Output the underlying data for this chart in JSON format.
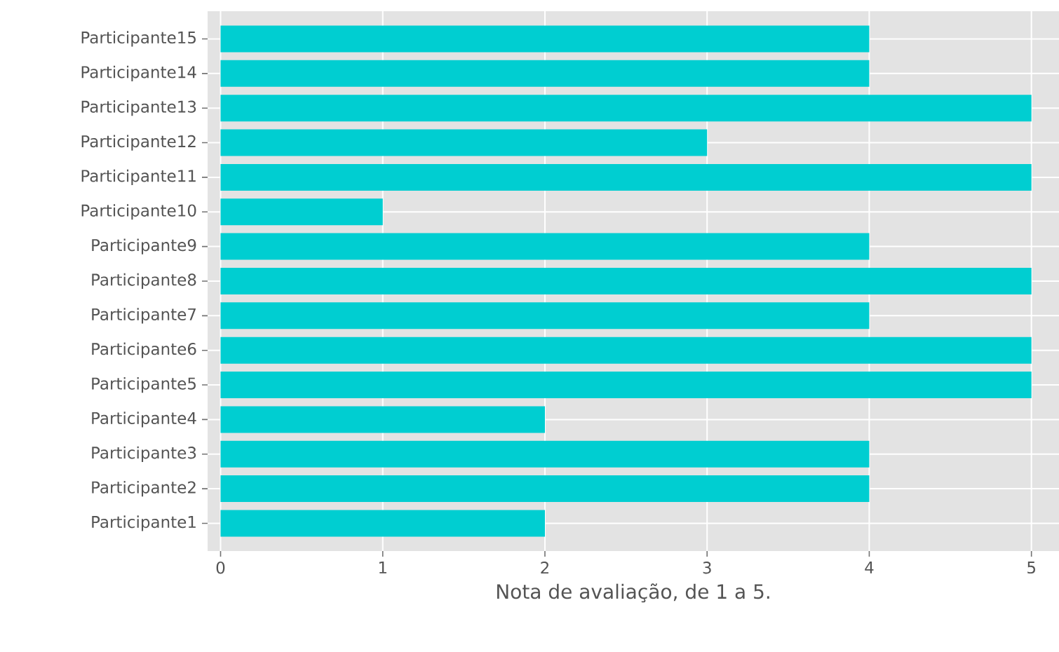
{
  "chart_data": {
    "type": "bar",
    "orientation": "horizontal",
    "xlabel": "Nota de avaliação, de 1 a 5.",
    "categories": [
      "Participante15",
      "Participante14",
      "Participante13",
      "Participante12",
      "Participante11",
      "Participante10",
      "Participante9",
      "Participante8",
      "Participante7",
      "Participante6",
      "Participante5",
      "Participante4",
      "Participante3",
      "Participante2",
      "Participante1"
    ],
    "values": [
      4,
      4,
      5,
      3,
      5,
      1,
      4,
      5,
      4,
      5,
      5,
      2,
      4,
      4,
      2
    ],
    "color": "#00ced1",
    "xlim": [
      -0.08,
      5.17
    ],
    "xticks": [
      0,
      1,
      2,
      3,
      4,
      5
    ],
    "grid": true
  }
}
